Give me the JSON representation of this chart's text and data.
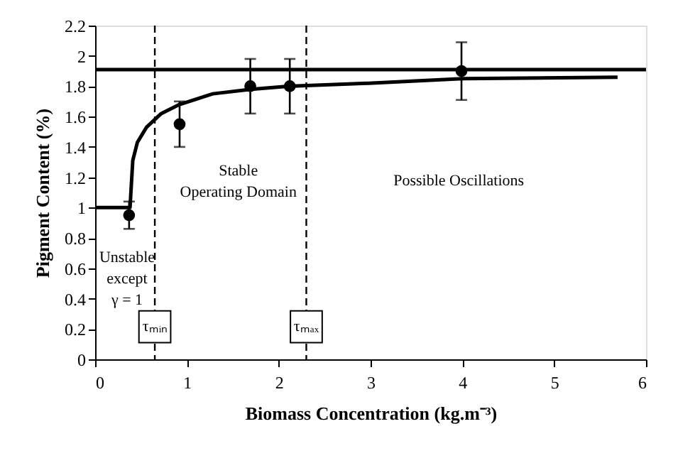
{
  "chart_data": {
    "type": "scatter",
    "xlabel": "Biomass Concentration (kg.m⁻³)",
    "ylabel": "Pigment Content (%)",
    "xlim": [
      0,
      6
    ],
    "xticks": [
      0,
      1,
      2,
      3,
      4,
      5,
      6
    ],
    "ylim": [
      0,
      2.2
    ],
    "yticks": [
      0,
      0.2,
      0.4,
      0.6,
      0.8,
      1,
      1.2,
      1.4,
      1.6,
      1.8,
      2,
      2.2
    ],
    "grid": false,
    "series": [
      {
        "color": "#000000",
        "marker": "circle",
        "x": [
          0.37,
          0.92,
          1.69,
          2.12,
          3.99
        ],
        "values": [
          0.95,
          1.55,
          1.8,
          1.8,
          1.9
        ],
        "errors": [
          0.09,
          0.15,
          0.18,
          0.18,
          0.19
        ]
      },
      {
        "type": "line",
        "color": "#000000",
        "marker": "none",
        "line_style": "solid",
        "x": [
          0,
          0.38,
          0.41,
          0.46,
          0.56,
          0.72,
          0.92,
          1.28,
          1.7,
          2.1,
          2.98,
          4.0,
          5.69
        ],
        "values": [
          1.0,
          1.0,
          1.31,
          1.43,
          1.53,
          1.62,
          1.68,
          1.75,
          1.78,
          1.8,
          1.82,
          1.85,
          1.86
        ]
      }
    ],
    "ref_lines": [
      {
        "axis": "y",
        "value": 1.91,
        "color": "#000000",
        "line_style": "solid"
      },
      {
        "axis": "x",
        "value": 0.65,
        "label": "τₘᵢₙ",
        "color": "#000000",
        "line_style": "dashed"
      },
      {
        "axis": "x",
        "value": 2.3,
        "label": "τₘₐₓ",
        "color": "#000000",
        "line_style": "dashed"
      }
    ],
    "annotations": [
      "Unstable\nexcept\nγ = 1",
      "Stable\nOperating Domain",
      "Possible Oscillations"
    ]
  }
}
